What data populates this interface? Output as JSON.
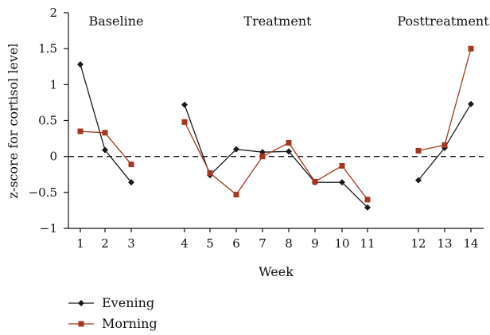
{
  "chart_data": {
    "type": "line",
    "title": "",
    "xlabel": "Week",
    "ylabel": "z-score for cortisol level",
    "ylim": [
      -1,
      2
    ],
    "yticks": [
      2,
      1.5,
      1,
      0.5,
      0,
      -0.5,
      -1
    ],
    "ytick_labels": [
      "2",
      "1.5",
      "1",
      "0.5",
      "0",
      "−0.5",
      "−1"
    ],
    "x_categories": [
      1,
      2,
      3,
      4,
      5,
      6,
      7,
      8,
      9,
      10,
      11,
      12,
      13,
      14
    ],
    "phases": [
      {
        "label": "Baseline",
        "weeks": [
          1,
          2,
          3
        ]
      },
      {
        "label": "Treatment",
        "weeks": [
          4,
          5,
          6,
          7,
          8,
          9,
          10,
          11
        ]
      },
      {
        "label": "Posttreatment",
        "weeks": [
          12,
          13,
          14
        ]
      }
    ],
    "reference_line": {
      "y": 0,
      "style": "dashed"
    },
    "series": [
      {
        "name": "Evening",
        "color": "#1a1a1a",
        "marker": "diamond",
        "segments": [
          [
            [
              1,
              1.28
            ],
            [
              2,
              0.09
            ],
            [
              3,
              -0.36
            ]
          ],
          [
            [
              4,
              0.72
            ],
            [
              5,
              -0.26
            ],
            [
              6,
              0.1
            ],
            [
              7,
              0.06
            ],
            [
              8,
              0.07
            ],
            [
              9,
              -0.36
            ],
            [
              10,
              -0.36
            ],
            [
              11,
              -0.71
            ]
          ],
          [
            [
              12,
              -0.33
            ],
            [
              13,
              0.12
            ],
            [
              14,
              0.73
            ]
          ]
        ]
      },
      {
        "name": "Morning",
        "color": "#a5371f",
        "marker": "square",
        "segments": [
          [
            [
              1,
              0.35
            ],
            [
              2,
              0.33
            ],
            [
              3,
              -0.11
            ]
          ],
          [
            [
              4,
              0.48
            ],
            [
              5,
              -0.23
            ],
            [
              6,
              -0.53
            ],
            [
              7,
              0.0
            ],
            [
              8,
              0.19
            ],
            [
              9,
              -0.35
            ],
            [
              10,
              -0.13
            ],
            [
              11,
              -0.6
            ]
          ],
          [
            [
              12,
              0.08
            ],
            [
              13,
              0.16
            ],
            [
              14,
              1.5
            ]
          ]
        ]
      }
    ],
    "legend": {
      "position": "bottom-left",
      "entries": [
        "Evening",
        "Morning"
      ]
    },
    "grid": false
  }
}
